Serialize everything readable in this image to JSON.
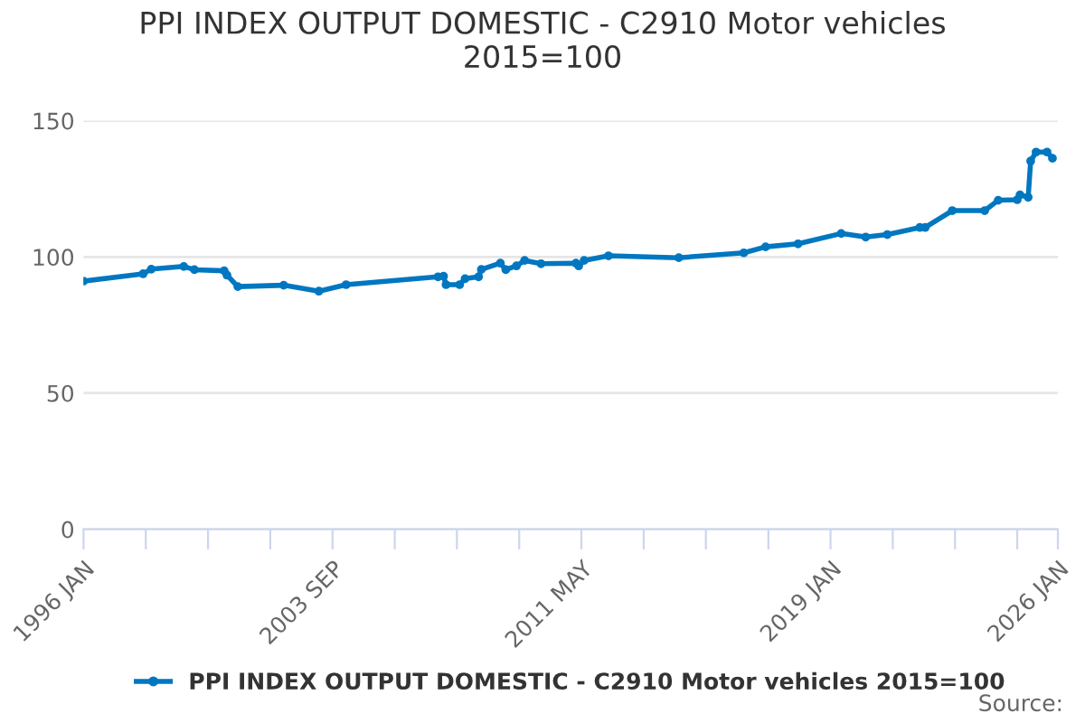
{
  "chart_data": {
    "type": "line",
    "title": "PPI INDEX OUTPUT DOMESTIC - C2910 Motor vehicles 2015=100",
    "x": [
      "1996-01",
      "1997-11",
      "1998-02",
      "1999-02",
      "1999-06",
      "2000-05",
      "2000-06",
      "2000-10",
      "2002-03",
      "2003-04",
      "2004-02",
      "2006-12",
      "2007-02",
      "2007-03",
      "2007-08",
      "2007-10",
      "2008-03",
      "2008-04",
      "2008-11",
      "2009-01",
      "2009-05",
      "2009-08",
      "2010-02",
      "2011-03",
      "2011-04",
      "2011-06",
      "2012-03",
      "2014-05",
      "2016-05",
      "2017-01",
      "2018-01",
      "2019-05",
      "2020-02",
      "2020-10",
      "2021-10",
      "2021-12",
      "2022-10",
      "2023-10",
      "2024-03",
      "2024-10",
      "2024-11",
      "2025-02",
      "2025-03",
      "2025-05",
      "2025-09",
      "2025-11"
    ],
    "series": [
      {
        "name": "PPI INDEX OUTPUT DOMESTIC - C2910 Motor vehicles 2015=100",
        "color": "#0077c0",
        "values": [
          91.1,
          93.8,
          95.5,
          96.5,
          95.3,
          94.9,
          93.3,
          89.1,
          89.6,
          87.4,
          89.8,
          92.7,
          92.9,
          89.8,
          89.8,
          92,
          92.7,
          95.4,
          97.7,
          95.3,
          96.7,
          98.7,
          97.5,
          97.7,
          96.7,
          98.7,
          100.4,
          99.7,
          101.5,
          103.7,
          104.8,
          108.6,
          107.3,
          108.2,
          110.8,
          110.8,
          117,
          117,
          120.8,
          121,
          122.8,
          121.9,
          135.2,
          138.5,
          138.5,
          136.2
        ]
      }
    ],
    "xlim": [
      "1996-01",
      "2026-01"
    ],
    "xticks": [
      {
        "value": "1996-01",
        "label": "1996 JAN"
      },
      {
        "value": "1997-12",
        "label": null
      },
      {
        "value": "1999-11",
        "label": null
      },
      {
        "value": "2001-10",
        "label": null
      },
      {
        "value": "2003-09",
        "label": "2003 SEP"
      },
      {
        "value": "2005-08",
        "label": null
      },
      {
        "value": "2007-07",
        "label": null
      },
      {
        "value": "2009-06",
        "label": null
      },
      {
        "value": "2011-05",
        "label": "2011 MAY"
      },
      {
        "value": "2013-04",
        "label": null
      },
      {
        "value": "2015-03",
        "label": null
      },
      {
        "value": "2017-02",
        "label": null
      },
      {
        "value": "2019-01",
        "label": "2019 JAN"
      },
      {
        "value": "2020-12",
        "label": null
      },
      {
        "value": "2022-11",
        "label": null
      },
      {
        "value": "2024-10",
        "label": null
      },
      {
        "value": "2026-01",
        "label": "2026 JAN"
      }
    ],
    "ylim": [
      0,
      150
    ],
    "yticks": [
      0,
      50,
      100,
      150
    ],
    "grid": "y",
    "legend": "bottom",
    "marker": "circle",
    "line_style": "solid",
    "annotations": [
      "Source:"
    ]
  }
}
